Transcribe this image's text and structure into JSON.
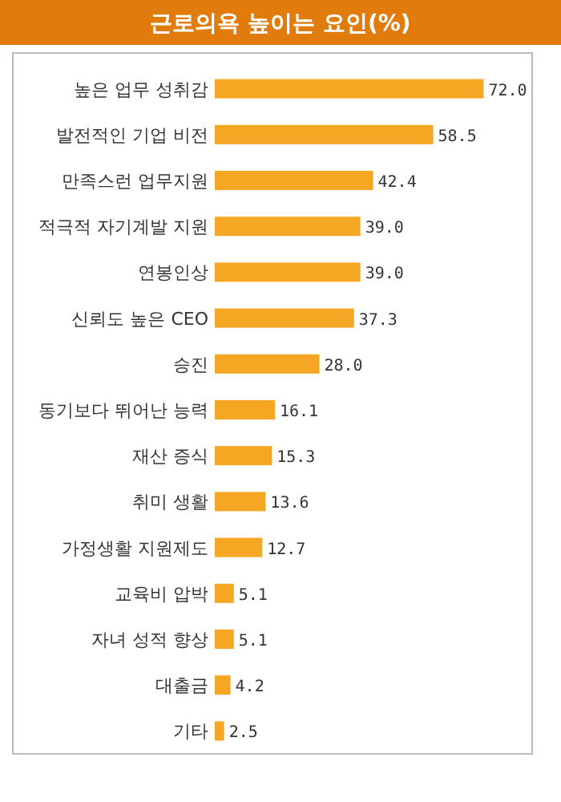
{
  "chart_data": {
    "type": "bar",
    "orientation": "horizontal",
    "title": "근로의욕 높이는 요인(%)",
    "categories": [
      "높은 업무 성취감",
      "발전적인 기업 비전",
      "만족스런 업무지원",
      "적극적 자기계발 지원",
      "연봉인상",
      "신뢰도 높은 CEO",
      "승진",
      "동기보다 뛰어난 능력",
      "재산 증식",
      "취미 생활",
      "가정생활 지원제도",
      "교육비 압박",
      "자녀 성적 향상",
      "대출금",
      "기타"
    ],
    "values": [
      72.0,
      58.5,
      42.4,
      39.0,
      39.0,
      37.3,
      28.0,
      16.1,
      15.3,
      13.6,
      12.7,
      5.1,
      5.1,
      4.2,
      2.5
    ],
    "value_labels": [
      "72.0",
      "58.5",
      "42.4",
      "39.0",
      "39.0",
      "37.3",
      "28.0",
      "16.1",
      "15.3",
      "13.6",
      "12.7",
      "5.1",
      "5.1",
      "4.2",
      "2.5"
    ],
    "color": "#f5a623",
    "xlim": [
      0,
      85
    ]
  }
}
